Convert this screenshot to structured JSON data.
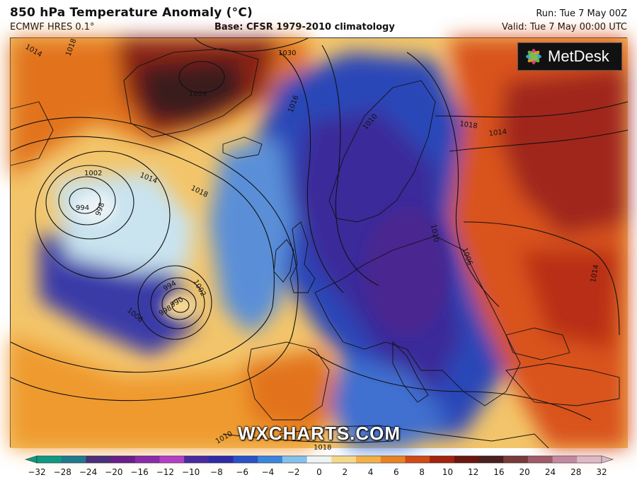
{
  "header": {
    "title": "850 hPa Temperature Anomaly (°C)",
    "model": "ECMWF HRES 0.1°",
    "base": "Base: CFSR 1979-2010 climatology",
    "run": "Run: Tue 7 May 00Z",
    "valid": "Valid: Tue 7 May 00:00 UTC"
  },
  "brand": {
    "name": "MetDesk"
  },
  "watermark": "WXCHARTS.COM",
  "colorbar": {
    "ticks": [
      "−32",
      "−28",
      "−24",
      "−20",
      "−16",
      "−12",
      "−10",
      "−8",
      "−6",
      "−4",
      "−2",
      "0",
      "2",
      "4",
      "6",
      "8",
      "10",
      "12",
      "16",
      "20",
      "24",
      "28",
      "32"
    ],
    "colors": [
      "#0e9a82",
      "#1e7a8c",
      "#4b2f7a",
      "#6a1f8a",
      "#8a2aa8",
      "#b43fc4",
      "#4a2aa0",
      "#2e2ba8",
      "#2a52c8",
      "#3b86dc",
      "#86c1ec",
      "#eef3f3",
      "#f5d98a",
      "#f1b04a",
      "#e88224",
      "#cf4a16",
      "#a3230f",
      "#6a1810",
      "#4a2020",
      "#7a3a3a",
      "#a05a6a",
      "#c489a0",
      "#e0b8c8"
    ]
  },
  "isobars": [
    {
      "label": "1014"
    },
    {
      "label": "1018"
    },
    {
      "label": "1030"
    },
    {
      "label": "1024"
    },
    {
      "label": "1016"
    },
    {
      "label": "1002"
    },
    {
      "label": "994"
    },
    {
      "label": "998"
    },
    {
      "label": "1014"
    },
    {
      "label": "1018"
    },
    {
      "label": "994"
    },
    {
      "label": "990"
    },
    {
      "label": "998"
    },
    {
      "label": "1002"
    },
    {
      "label": "1006"
    },
    {
      "label": "1010"
    },
    {
      "label": "1010"
    },
    {
      "label": "1006"
    },
    {
      "label": "1018"
    },
    {
      "label": "1014"
    },
    {
      "label": "1014"
    },
    {
      "label": "1018"
    },
    {
      "label": "1010"
    }
  ]
}
